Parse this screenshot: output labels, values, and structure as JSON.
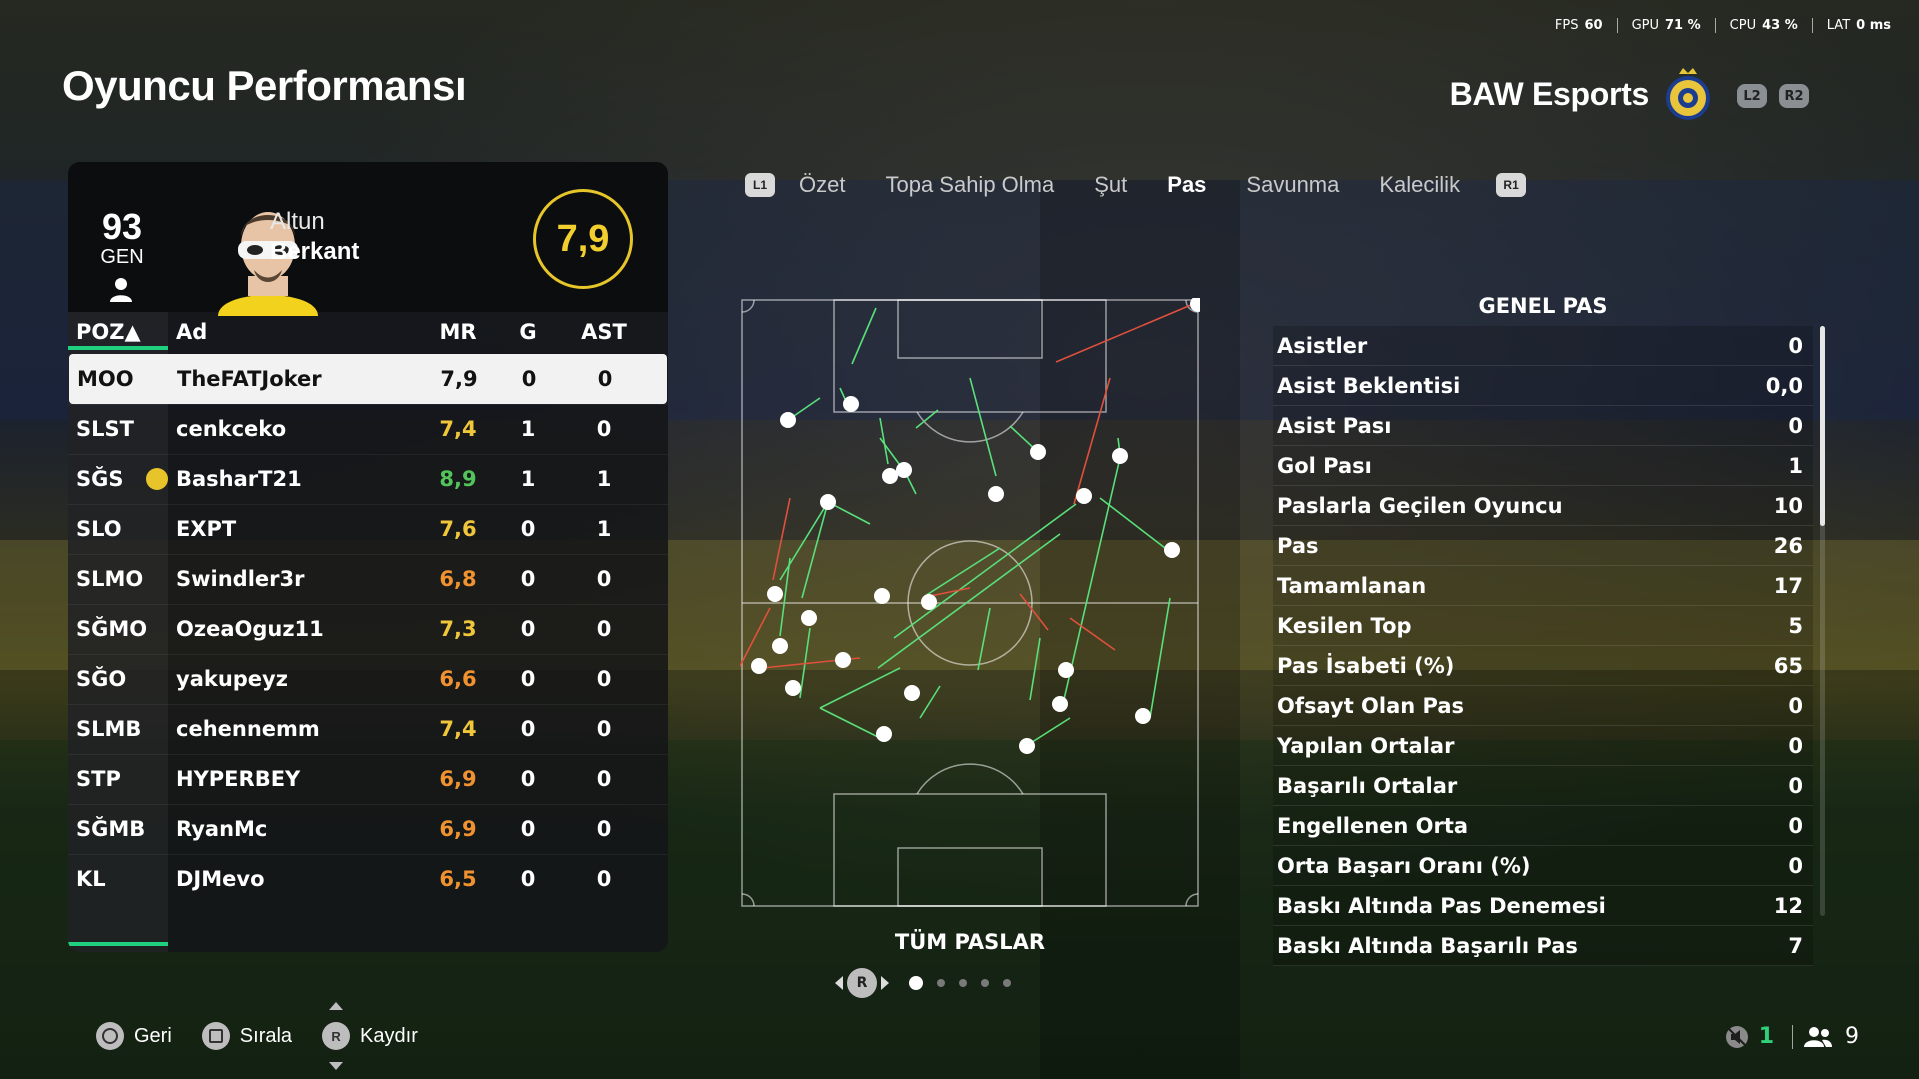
{
  "header": {
    "title": "Oyuncu Performansı",
    "team_name": "BAW Esports",
    "l2": "L2",
    "r2": "R2"
  },
  "perf": {
    "fps_label": "FPS",
    "fps": "60",
    "gpu_label": "GPU",
    "gpu": "71 %",
    "cpu_label": "CPU",
    "cpu": "43 %",
    "lat_label": "LAT",
    "lat": "0 ms"
  },
  "player": {
    "overall": "93",
    "overall_label": "GEN",
    "first_name": "Altun",
    "last_name": "Berkant",
    "rating": "7,9"
  },
  "table": {
    "headers": {
      "pos": "POZ▲",
      "name": "Ad",
      "mr": "MR",
      "g": "G",
      "ast": "AST"
    },
    "rows": [
      {
        "pos": "MOO",
        "name": "TheFATJoker",
        "mr": "7,9",
        "g": "0",
        "ast": "0",
        "captain": false
      },
      {
        "pos": "SLST",
        "name": "cenkceko",
        "mr": "7,4",
        "g": "1",
        "ast": "0",
        "captain": false
      },
      {
        "pos": "SĞS",
        "name": "BasharT21",
        "mr": "8,9",
        "g": "1",
        "ast": "1",
        "captain": true
      },
      {
        "pos": "SLO",
        "name": "EXPT",
        "mr": "7,6",
        "g": "0",
        "ast": "1",
        "captain": false
      },
      {
        "pos": "SLMO",
        "name": "Swindler3r",
        "mr": "6,8",
        "g": "0",
        "ast": "0",
        "captain": false
      },
      {
        "pos": "SĞMO",
        "name": "OzeaOguz11",
        "mr": "7,3",
        "g": "0",
        "ast": "0",
        "captain": false
      },
      {
        "pos": "SĞO",
        "name": "yakupeyz",
        "mr": "6,6",
        "g": "0",
        "ast": "0",
        "captain": false
      },
      {
        "pos": "SLMB",
        "name": "cehennemm",
        "mr": "7,4",
        "g": "0",
        "ast": "0",
        "captain": false
      },
      {
        "pos": "STP",
        "name": "HYPERBEY",
        "mr": "6,9",
        "g": "0",
        "ast": "0",
        "captain": false
      },
      {
        "pos": "SĞMB",
        "name": "RyanMc",
        "mr": "6,9",
        "g": "0",
        "ast": "0",
        "captain": false
      },
      {
        "pos": "KL",
        "name": "DJMevo",
        "mr": "6,5",
        "g": "0",
        "ast": "0",
        "captain": false
      }
    ]
  },
  "tabs": {
    "l1": "L1",
    "r1": "R1",
    "items": [
      "Özet",
      "Topa Sahip Olma",
      "Şut",
      "Pas",
      "Savunma",
      "Kalecilik"
    ],
    "active_index": 3
  },
  "pitch": {
    "title": "TÜM PASLAR",
    "pager_button": "R",
    "page_count": 5,
    "current_page": 1
  },
  "stats": {
    "title": "GENEL PAS",
    "rows": [
      {
        "label": "Asistler",
        "value": "0"
      },
      {
        "label": "Asist Beklentisi",
        "value": "0,0"
      },
      {
        "label": "Asist Pası",
        "value": "0"
      },
      {
        "label": "Gol Pası",
        "value": "1"
      },
      {
        "label": "Paslarla Geçilen Oyuncu",
        "value": "10"
      },
      {
        "label": "Pas",
        "value": "26"
      },
      {
        "label": "Tamamlanan",
        "value": "17"
      },
      {
        "label": "Kesilen Top",
        "value": "5"
      },
      {
        "label": "Pas İsabeti (%)",
        "value": "65"
      },
      {
        "label": "Ofsayt Olan Pas",
        "value": "0"
      },
      {
        "label": "Yapılan Ortalar",
        "value": "0"
      },
      {
        "label": "Başarılı Ortalar",
        "value": "0"
      },
      {
        "label": "Engellenen Orta",
        "value": "0"
      },
      {
        "label": "Orta Başarı Oranı (%)",
        "value": "0"
      },
      {
        "label": "Baskı Altında Pas Denemesi",
        "value": "12"
      },
      {
        "label": "Baskı Altında Başarılı Pas",
        "value": "7"
      }
    ]
  },
  "footer": {
    "back": "Geri",
    "sort": "Sırala",
    "scroll_button": "R",
    "scroll": "Kaydır"
  },
  "status": {
    "squad_count": "1",
    "party_count": "9"
  },
  "colors": {
    "accent_green": "#1fd07f",
    "rating_yellow": "#f2cf2f",
    "rating_green": "#52c45a",
    "rating_orange": "#f0922f",
    "pass_success": "#59e07a",
    "pass_fail": "#e0503c"
  }
}
